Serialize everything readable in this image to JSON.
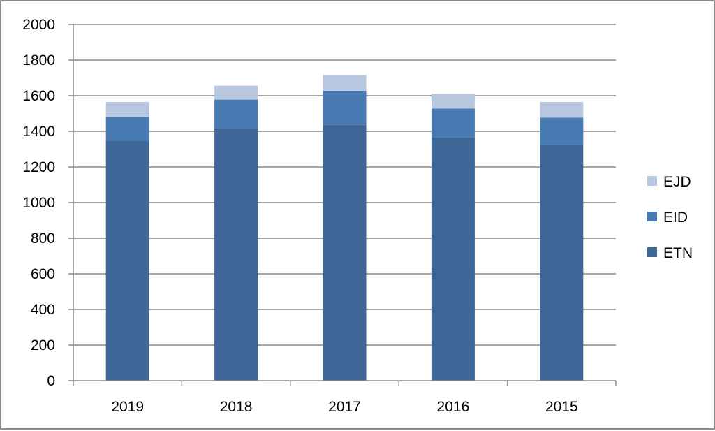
{
  "chart_data": {
    "type": "bar",
    "stacked": true,
    "categories": [
      "2019",
      "2018",
      "2017",
      "2016",
      "2015"
    ],
    "series": [
      {
        "name": "ETN",
        "color": "#3e6696",
        "values": [
          1345,
          1418,
          1436,
          1365,
          1322
        ]
      },
      {
        "name": "EID",
        "color": "#4779b3",
        "values": [
          138,
          160,
          192,
          163,
          155
        ]
      },
      {
        "name": "EJD",
        "color": "#b7c7df",
        "values": [
          82,
          78,
          88,
          82,
          88
        ]
      }
    ],
    "title": "",
    "xlabel": "",
    "ylabel": "",
    "ylim": [
      0,
      2000
    ],
    "yticks": [
      0,
      200,
      400,
      600,
      800,
      1000,
      1200,
      1400,
      1600,
      1800,
      2000
    ],
    "grid": "horizontal",
    "legend_position": "right",
    "legend_order": [
      "EJD",
      "EID",
      "ETN"
    ]
  }
}
